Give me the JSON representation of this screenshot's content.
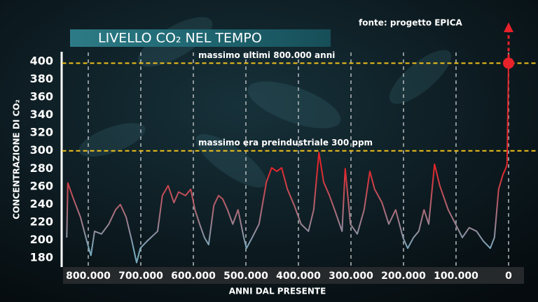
{
  "chart_data": {
    "type": "line",
    "title": "LIVELLO CO₂ NEL TEMPO",
    "source": "fonte: progetto EPICA",
    "ylabel": "CONCENTRAZIONE DI CO₂",
    "xlabel": "ANNI DAL PRESENTE",
    "ylim": [
      170,
      410
    ],
    "yticks": [
      180,
      200,
      220,
      240,
      260,
      280,
      300,
      320,
      340,
      360,
      380,
      400
    ],
    "xlim": [
      850000,
      -30000
    ],
    "xticks": [
      {
        "value": 800000,
        "label": "800.000"
      },
      {
        "value": 700000,
        "label": "700.000"
      },
      {
        "value": 600000,
        "label": "600.000"
      },
      {
        "value": 500000,
        "label": "500.000"
      },
      {
        "value": 400000,
        "label": "400.000"
      },
      {
        "value": 300000,
        "label": "300.000"
      },
      {
        "value": 200000,
        "label": "200.000"
      },
      {
        "value": 100000,
        "label": "100.000"
      },
      0
    ],
    "grid": true,
    "reference_lines": [
      {
        "value": 398,
        "label": "massimo ultimi 800.000 anni",
        "color": "#f2c21b"
      },
      {
        "value": 300,
        "label": "massimo era preindustriale 300 ppm",
        "color": "#f2c21b"
      }
    ],
    "gradient": {
      "values": [
        190,
        280
      ],
      "colors": [
        "#7aa9bd",
        "#e3252b"
      ]
    },
    "marker": {
      "x": 0,
      "y": 398,
      "color": "#e8212a"
    },
    "series": [
      {
        "name": "CO₂",
        "x": [
          841000,
          839000,
          828000,
          815000,
          801000,
          795000,
          788000,
          775000,
          761000,
          748000,
          739000,
          728000,
          717000,
          708000,
          701000,
          688000,
          668000,
          659000,
          648000,
          637000,
          628000,
          615000,
          605000,
          597000,
          588000,
          579000,
          571000,
          561000,
          552000,
          544000,
          535000,
          525000,
          515000,
          504000,
          499000,
          488000,
          475000,
          461000,
          451000,
          441000,
          432000,
          421000,
          408000,
          395000,
          381000,
          371000,
          361000,
          352000,
          341000,
          331000,
          317000,
          311000,
          301000,
          288000,
          275000,
          264000,
          255000,
          241000,
          228000,
          215000,
          201000,
          192000,
          181000,
          171000,
          161000,
          152000,
          141000,
          131000,
          115000,
          101000,
          88000,
          75000,
          61000,
          48000,
          35000,
          27000,
          19000,
          11000,
          5000,
          3000,
          0
        ],
        "values": [
          203,
          264,
          246,
          226,
          195,
          183,
          210,
          207,
          218,
          234,
          240,
          226,
          199,
          175,
          191,
          199,
          210,
          250,
          261,
          242,
          254,
          250,
          257,
          234,
          218,
          203,
          195,
          239,
          250,
          246,
          234,
          218,
          234,
          203,
          191,
          203,
          218,
          265,
          281,
          277,
          281,
          257,
          239,
          218,
          210,
          234,
          298,
          265,
          250,
          234,
          210,
          280,
          218,
          207,
          234,
          277,
          257,
          242,
          218,
          234,
          203,
          191,
          203,
          210,
          234,
          218,
          285,
          261,
          234,
          218,
          203,
          214,
          210,
          199,
          191,
          203,
          257,
          273,
          281,
          285,
          398
        ]
      }
    ]
  }
}
